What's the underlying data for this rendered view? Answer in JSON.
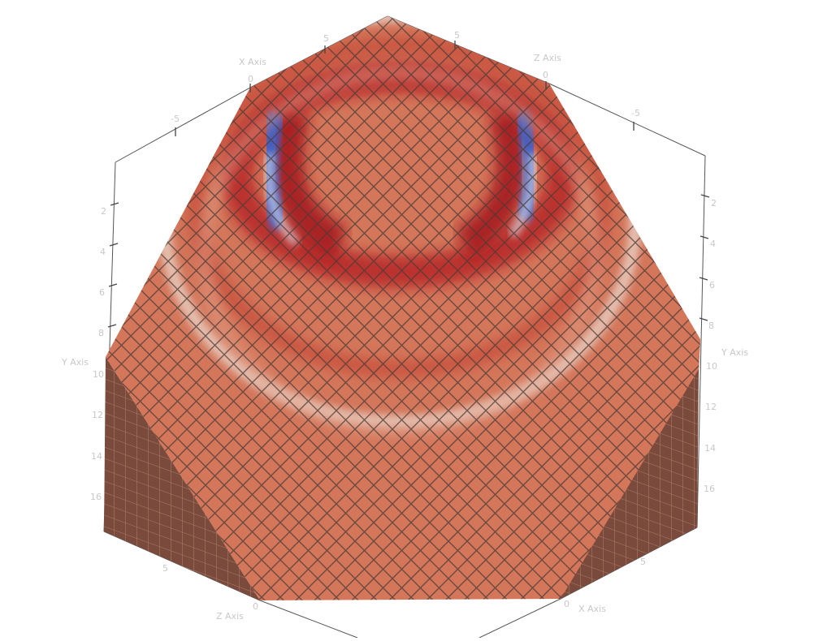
{
  "axes": {
    "x_axis": {
      "title": "X Axis",
      "ticks_top": [
        "-5",
        "0",
        "5"
      ],
      "ticks_bottom": [
        "0",
        "5"
      ]
    },
    "z_axis": {
      "title": "Z Axis",
      "ticks_top": [
        "5",
        "0",
        "-5"
      ],
      "ticks_bottom": [
        "5",
        "0"
      ]
    },
    "y_axis": {
      "title": "Y Axis",
      "ticks": [
        "2",
        "4",
        "6",
        "8",
        "10",
        "12",
        "14",
        "16"
      ]
    }
  },
  "colors": {
    "background": "#ffffff",
    "surface": "#d4765a",
    "side_face": "#7a4a3c",
    "mesh_lines": "#4a3a35",
    "field_high": "#b0191e",
    "field_low": "#3b5ec8",
    "field_mid": "#dcdcdc"
  }
}
